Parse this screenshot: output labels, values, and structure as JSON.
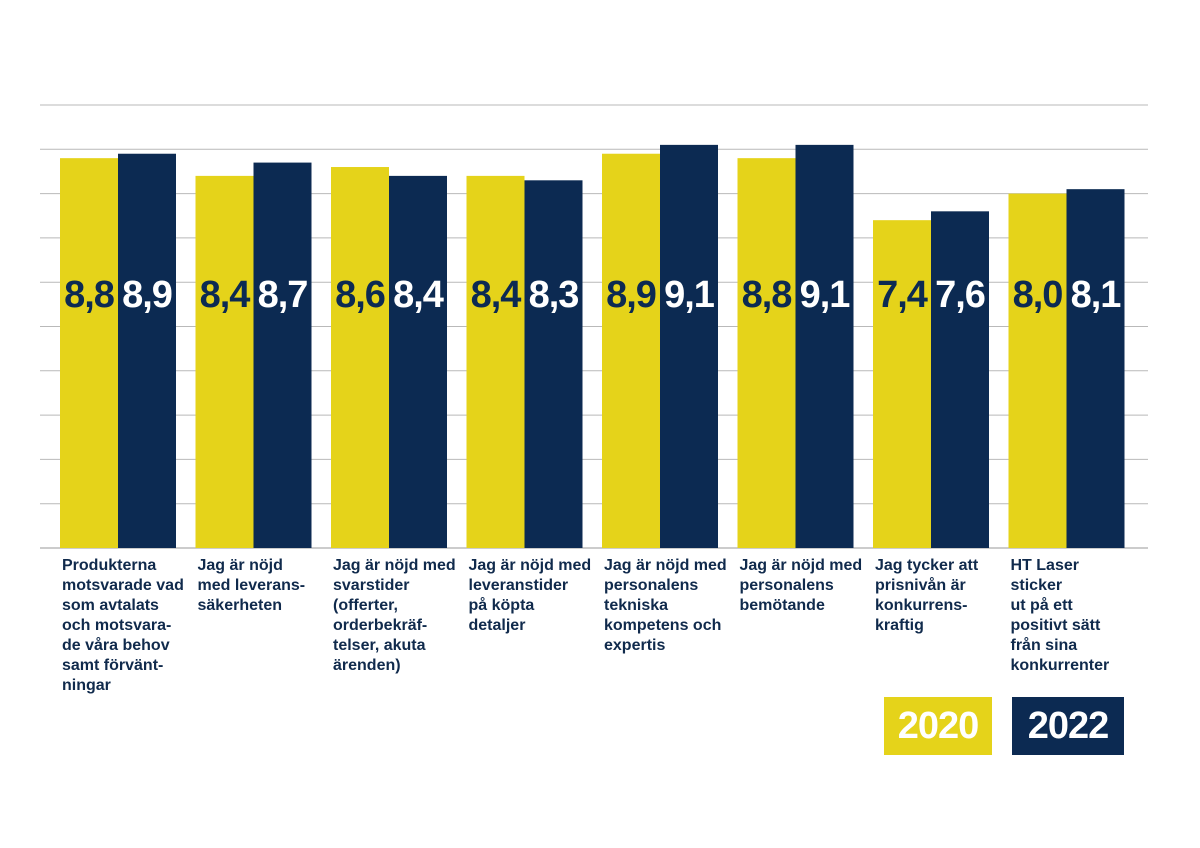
{
  "chart_data": {
    "type": "bar",
    "categories": [
      "Produkterna\nmotsvarade vad\nsom avtalats\noch motsvara-\nde våra behov\nsamt förvänt-\nningar",
      "Jag är nöjd\nmed leverans-\nsäkerheten",
      "Jag är nöjd med\nsvarstider\n(offerter,\norderbekräf-\ntelser, akuta\närenden)",
      "Jag är nöjd med\nleveranstider\npå köpta\ndetaljer",
      "Jag är nöjd med\npersonalens\ntekniska\nkompetens och\nexpertis",
      "Jag är nöjd med\npersonalens\nbemötande",
      "Jag tycker att\nprisnivån är\nkonkurrens-\nkraftig",
      "HT Laser sticker\nut på ett\npositivt sätt\nfrån sina\nkonkurrenter"
    ],
    "series": [
      {
        "name": "2020",
        "color": "#e5d31a",
        "values": [
          8.8,
          8.4,
          8.6,
          8.4,
          8.9,
          8.8,
          7.4,
          8.0
        ],
        "labels": [
          "8,8",
          "8,4",
          "8,6",
          "8,4",
          "8,9",
          "8,8",
          "7,4",
          "8,0"
        ]
      },
      {
        "name": "2022",
        "color": "#0c2a52",
        "values": [
          8.9,
          8.7,
          8.4,
          8.3,
          9.1,
          9.1,
          7.6,
          8.1
        ],
        "labels": [
          "8,9",
          "8,7",
          "8,4",
          "8,3",
          "9,1",
          "9,1",
          "7,6",
          "8,1"
        ]
      }
    ],
    "ylim": [
      0,
      10
    ],
    "grid": true,
    "legend": "bottom-right",
    "label_colors": {
      "light_bar_text": "#0c2a52",
      "dark_bar_text": "#ffffff"
    }
  }
}
